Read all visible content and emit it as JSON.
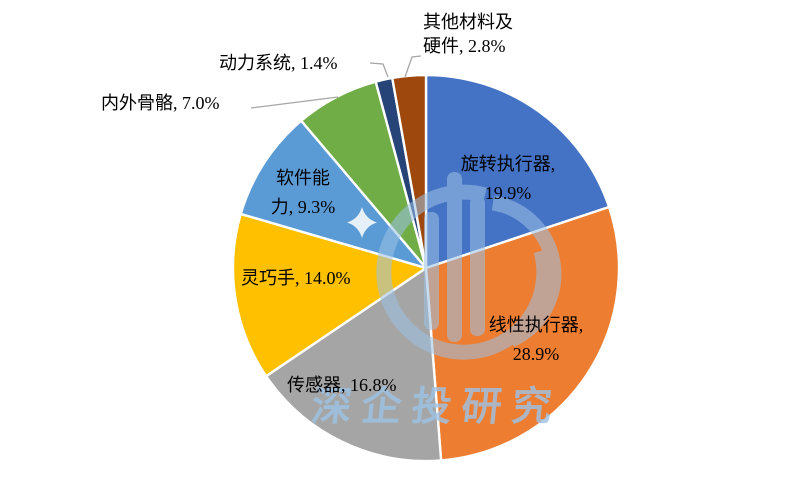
{
  "chart_data": {
    "type": "pie",
    "title": "",
    "start_angle_deg": 0,
    "direction": "clockwise",
    "legend": "none",
    "slices": [
      {
        "name": "旋转执行器",
        "percent": 19.9,
        "color": "#4472C4",
        "label_lines": [
          "旋转执行器,",
          "19.9%"
        ],
        "label_placement": "inside"
      },
      {
        "name": "线性执行器",
        "percent": 28.9,
        "color": "#ED7D31",
        "label_lines": [
          "线性执行器,",
          "28.9%"
        ],
        "label_placement": "inside"
      },
      {
        "name": "传感器",
        "percent": 16.8,
        "color": "#A5A5A5",
        "label_lines": [
          "传感器, 16.8%"
        ],
        "label_placement": "inside"
      },
      {
        "name": "灵巧手",
        "percent": 14.0,
        "color": "#FFC000",
        "label_lines": [
          "灵巧手, 14.0%"
        ],
        "label_placement": "inside"
      },
      {
        "name": "软件能力",
        "percent": 9.3,
        "color": "#5B9BD5",
        "label_lines": [
          "软件能",
          "力, 9.3%"
        ],
        "label_placement": "inside"
      },
      {
        "name": "内外骨骼",
        "percent": 7.0,
        "color": "#70AD47",
        "label_lines": [
          "内外骨骼, 7.0%"
        ],
        "label_placement": "outside-left"
      },
      {
        "name": "动力系统",
        "percent": 1.4,
        "color": "#264478",
        "label_lines": [
          "动力系统, 1.4%"
        ],
        "label_placement": "outside-top"
      },
      {
        "name": "其他材料及硬件",
        "percent": 2.8,
        "color": "#9E480E",
        "label_lines": [
          "其他材料及",
          "硬件, 2.8%"
        ],
        "label_placement": "outside-top-right"
      }
    ],
    "slice_border_color": "#FFFFFF",
    "leader_line_color": "#A6A6A6",
    "label_text_color": "#000000",
    "watermark": {
      "text": "深企投研究",
      "color": "#9DC3E6",
      "logo": "shenqitou-emblem"
    }
  }
}
